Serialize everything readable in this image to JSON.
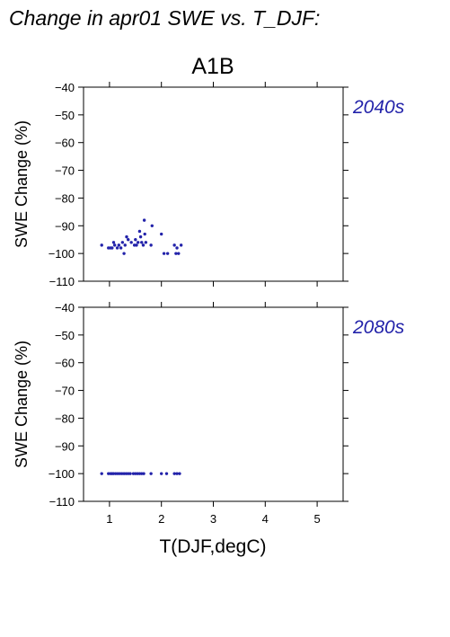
{
  "page_title": "Change in apr01 SWE vs. T_DJF:",
  "figure_title": "A1B",
  "point_color": "#2323aa",
  "label_color": "#2323aa",
  "chart_data": [
    {
      "type": "scatter",
      "period_label": "2040s",
      "ylabel": "SWE Change (%)",
      "xlabel": "",
      "xlim": [
        0.5,
        5.5
      ],
      "ylim": [
        -110,
        -40
      ],
      "x_ticks": [
        1,
        2,
        3,
        4,
        5
      ],
      "y_ticks": [
        -40,
        -50,
        -60,
        -70,
        -80,
        -90,
        -100,
        -110
      ],
      "grid": false,
      "points": [
        {
          "x": 0.85,
          "y": -97
        },
        {
          "x": 0.98,
          "y": -98
        },
        {
          "x": 1.02,
          "y": -98
        },
        {
          "x": 1.05,
          "y": -98
        },
        {
          "x": 1.08,
          "y": -96
        },
        {
          "x": 1.1,
          "y": -97
        },
        {
          "x": 1.15,
          "y": -98
        },
        {
          "x": 1.18,
          "y": -97
        },
        {
          "x": 1.22,
          "y": -98
        },
        {
          "x": 1.25,
          "y": -96
        },
        {
          "x": 1.28,
          "y": -100
        },
        {
          "x": 1.3,
          "y": -97
        },
        {
          "x": 1.33,
          "y": -94
        },
        {
          "x": 1.36,
          "y": -95
        },
        {
          "x": 1.42,
          "y": -96
        },
        {
          "x": 1.48,
          "y": -97
        },
        {
          "x": 1.5,
          "y": -95
        },
        {
          "x": 1.52,
          "y": -97
        },
        {
          "x": 1.55,
          "y": -96
        },
        {
          "x": 1.58,
          "y": -92
        },
        {
          "x": 1.6,
          "y": -94
        },
        {
          "x": 1.62,
          "y": -96
        },
        {
          "x": 1.65,
          "y": -97
        },
        {
          "x": 1.67,
          "y": -88
        },
        {
          "x": 1.68,
          "y": -93
        },
        {
          "x": 1.7,
          "y": -96
        },
        {
          "x": 1.8,
          "y": -97
        },
        {
          "x": 1.82,
          "y": -90
        },
        {
          "x": 2.0,
          "y": -93
        },
        {
          "x": 2.05,
          "y": -100
        },
        {
          "x": 2.12,
          "y": -100
        },
        {
          "x": 2.25,
          "y": -97
        },
        {
          "x": 2.28,
          "y": -100
        },
        {
          "x": 2.3,
          "y": -98
        },
        {
          "x": 2.33,
          "y": -100
        },
        {
          "x": 2.38,
          "y": -97
        }
      ]
    },
    {
      "type": "scatter",
      "period_label": "2080s",
      "ylabel": "SWE Change (%)",
      "xlabel": "T(DJF,degC)",
      "xlim": [
        0.5,
        5.5
      ],
      "ylim": [
        -110,
        -40
      ],
      "x_ticks": [
        1,
        2,
        3,
        4,
        5
      ],
      "y_ticks": [
        -40,
        -50,
        -60,
        -70,
        -80,
        -90,
        -100,
        -110
      ],
      "grid": false,
      "points": [
        {
          "x": 0.85,
          "y": -100
        },
        {
          "x": 0.98,
          "y": -100
        },
        {
          "x": 1.02,
          "y": -100
        },
        {
          "x": 1.05,
          "y": -100
        },
        {
          "x": 1.08,
          "y": -100
        },
        {
          "x": 1.12,
          "y": -100
        },
        {
          "x": 1.16,
          "y": -100
        },
        {
          "x": 1.2,
          "y": -100
        },
        {
          "x": 1.24,
          "y": -100
        },
        {
          "x": 1.28,
          "y": -100
        },
        {
          "x": 1.32,
          "y": -100
        },
        {
          "x": 1.36,
          "y": -100
        },
        {
          "x": 1.4,
          "y": -100
        },
        {
          "x": 1.46,
          "y": -100
        },
        {
          "x": 1.5,
          "y": -100
        },
        {
          "x": 1.54,
          "y": -100
        },
        {
          "x": 1.58,
          "y": -100
        },
        {
          "x": 1.62,
          "y": -100
        },
        {
          "x": 1.66,
          "y": -100
        },
        {
          "x": 1.8,
          "y": -100
        },
        {
          "x": 2.0,
          "y": -100
        },
        {
          "x": 2.1,
          "y": -100
        },
        {
          "x": 2.25,
          "y": -100
        },
        {
          "x": 2.3,
          "y": -100
        },
        {
          "x": 2.35,
          "y": -100
        }
      ]
    }
  ]
}
